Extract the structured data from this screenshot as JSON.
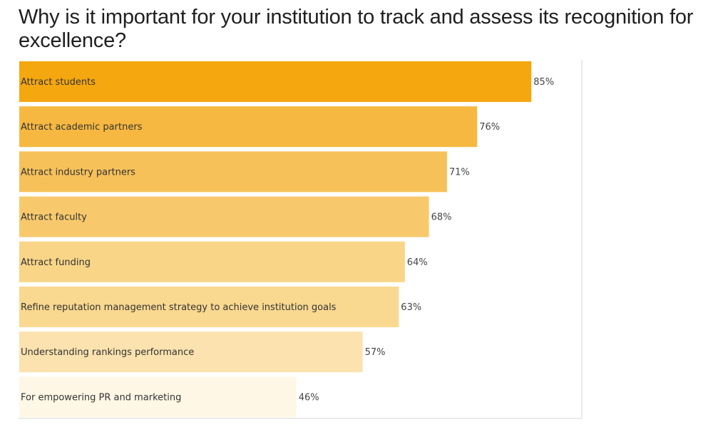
{
  "chart_data": {
    "type": "bar",
    "orientation": "horizontal",
    "title": "Why is it important for your institution to track and assess its recognition for excellence?",
    "categories": [
      "Attract students",
      "Attract academic partners",
      "Attract industry partners",
      "Attract faculty",
      "Attract funding",
      "Refine reputation management strategy to achieve institution goals",
      "Understanding rankings performance",
      "For empowering PR and marketing"
    ],
    "values": [
      85,
      76,
      71,
      68,
      64,
      63,
      57,
      46
    ],
    "value_labels": [
      "85%",
      "76%",
      "71%",
      "68%",
      "64%",
      "63%",
      "57%",
      "46%"
    ],
    "colors": [
      "#f5a70f",
      "#f6b840",
      "#f7c15a",
      "#f8c96c",
      "#f9d587",
      "#f9d88f",
      "#fbe2ae",
      "#fef7e6"
    ],
    "xlim": [
      0,
      100
    ],
    "grid": false,
    "legend": "none"
  }
}
